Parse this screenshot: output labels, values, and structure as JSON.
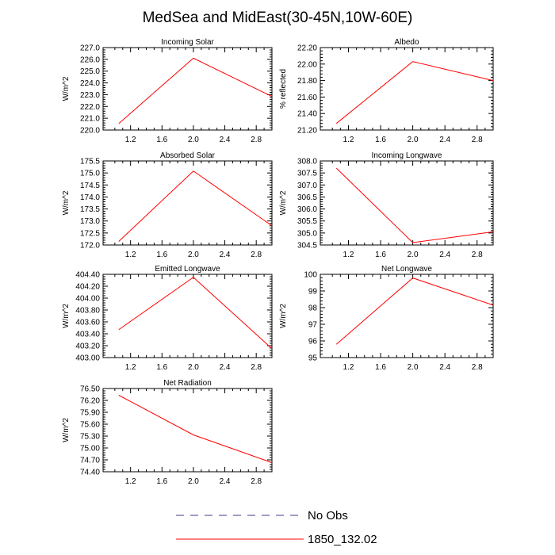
{
  "figure": {
    "title": "MedSea and MidEast(30-45N,10W-60E)",
    "legend": [
      {
        "label": "No Obs",
        "color": "#3c3c8c",
        "style": "dashed"
      },
      {
        "label": "1850_132.02",
        "color": "#ff0000",
        "style": "solid"
      }
    ]
  },
  "chart_data": [
    {
      "type": "line",
      "title": "Incoming Solar",
      "ylabel": "W/m^2",
      "x": [
        1.05,
        2.0,
        3.0
      ],
      "series": [
        {
          "name": "1850_132.02",
          "values": [
            220.55,
            226.1,
            222.85
          ]
        }
      ],
      "xlim": [
        0.85,
        3.0
      ],
      "ylim": [
        220.0,
        227.0
      ],
      "xticks": [
        "1.2",
        "1.6",
        "2.0",
        "2.4",
        "2.8"
      ],
      "yticks": [
        "220.0",
        "221.0",
        "222.0",
        "223.0",
        "224.0",
        "225.0",
        "226.0",
        "227.0"
      ]
    },
    {
      "type": "line",
      "title": "Albedo",
      "ylabel": "% reflected",
      "x": [
        1.05,
        2.0,
        3.0
      ],
      "series": [
        {
          "name": "1850_132.02",
          "values": [
            21.28,
            22.03,
            21.8
          ]
        }
      ],
      "xlim": [
        0.85,
        3.0
      ],
      "ylim": [
        21.2,
        22.2
      ],
      "xticks": [
        "1.2",
        "1.6",
        "2.0",
        "2.4",
        "2.8"
      ],
      "yticks": [
        "21.20",
        "21.40",
        "21.60",
        "21.80",
        "22.00",
        "22.20"
      ]
    },
    {
      "type": "line",
      "title": "Absorbed Solar",
      "ylabel": "W/m^2",
      "x": [
        1.05,
        2.0,
        3.0
      ],
      "series": [
        {
          "name": "1850_132.02",
          "values": [
            172.15,
            175.08,
            172.8
          ]
        }
      ],
      "xlim": [
        0.85,
        3.0
      ],
      "ylim": [
        172.0,
        175.5
      ],
      "xticks": [
        "1.2",
        "1.6",
        "2.0",
        "2.4",
        "2.8"
      ],
      "yticks": [
        "172.0",
        "172.5",
        "173.0",
        "173.5",
        "174.0",
        "174.5",
        "175.0",
        "175.5"
      ]
    },
    {
      "type": "line",
      "title": "Incoming Longwave",
      "ylabel": "W/m^2",
      "x": [
        1.05,
        2.0,
        3.0
      ],
      "series": [
        {
          "name": "1850_132.02",
          "values": [
            307.7,
            304.6,
            305.05
          ]
        }
      ],
      "xlim": [
        0.85,
        3.0
      ],
      "ylim": [
        304.5,
        308.0
      ],
      "xticks": [
        "1.2",
        "1.6",
        "2.0",
        "2.4",
        "2.8"
      ],
      "yticks": [
        "304.5",
        "305.0",
        "305.5",
        "306.0",
        "306.5",
        "307.0",
        "307.5",
        "308.0"
      ]
    },
    {
      "type": "line",
      "title": "Emitted Longwave",
      "ylabel": "W/m^2",
      "x": [
        1.05,
        2.0,
        3.0
      ],
      "series": [
        {
          "name": "1850_132.02",
          "values": [
            403.47,
            404.35,
            403.15
          ]
        }
      ],
      "xlim": [
        0.85,
        3.0
      ],
      "ylim": [
        403.0,
        404.4
      ],
      "xticks": [
        "1.2",
        "1.6",
        "2.0",
        "2.4",
        "2.8"
      ],
      "yticks": [
        "403.00",
        "403.20",
        "403.40",
        "403.60",
        "403.80",
        "404.00",
        "404.20",
        "404.40"
      ]
    },
    {
      "type": "line",
      "title": "Net Longwave",
      "ylabel": "W/m^2",
      "x": [
        1.05,
        2.0,
        3.0
      ],
      "series": [
        {
          "name": "1850_132.02",
          "values": [
            95.8,
            99.78,
            98.15
          ]
        }
      ],
      "xlim": [
        0.85,
        3.0
      ],
      "ylim": [
        95,
        100
      ],
      "xticks": [
        "1.2",
        "1.6",
        "2.0",
        "2.4",
        "2.8"
      ],
      "yticks": [
        "95",
        "96",
        "97",
        "98",
        "99",
        "100"
      ]
    },
    {
      "type": "line",
      "title": "Net Radiation",
      "ylabel": "W/m^2",
      "x": [
        1.05,
        2.0,
        3.0
      ],
      "series": [
        {
          "name": "1850_132.02",
          "values": [
            76.33,
            75.33,
            74.63
          ]
        }
      ],
      "xlim": [
        0.85,
        3.0
      ],
      "ylim": [
        74.4,
        76.5
      ],
      "xticks": [
        "1.2",
        "1.6",
        "2.0",
        "2.4",
        "2.8"
      ],
      "yticks": [
        "74.40",
        "74.70",
        "75.00",
        "75.30",
        "75.60",
        "75.90",
        "76.20",
        "76.50"
      ]
    }
  ]
}
